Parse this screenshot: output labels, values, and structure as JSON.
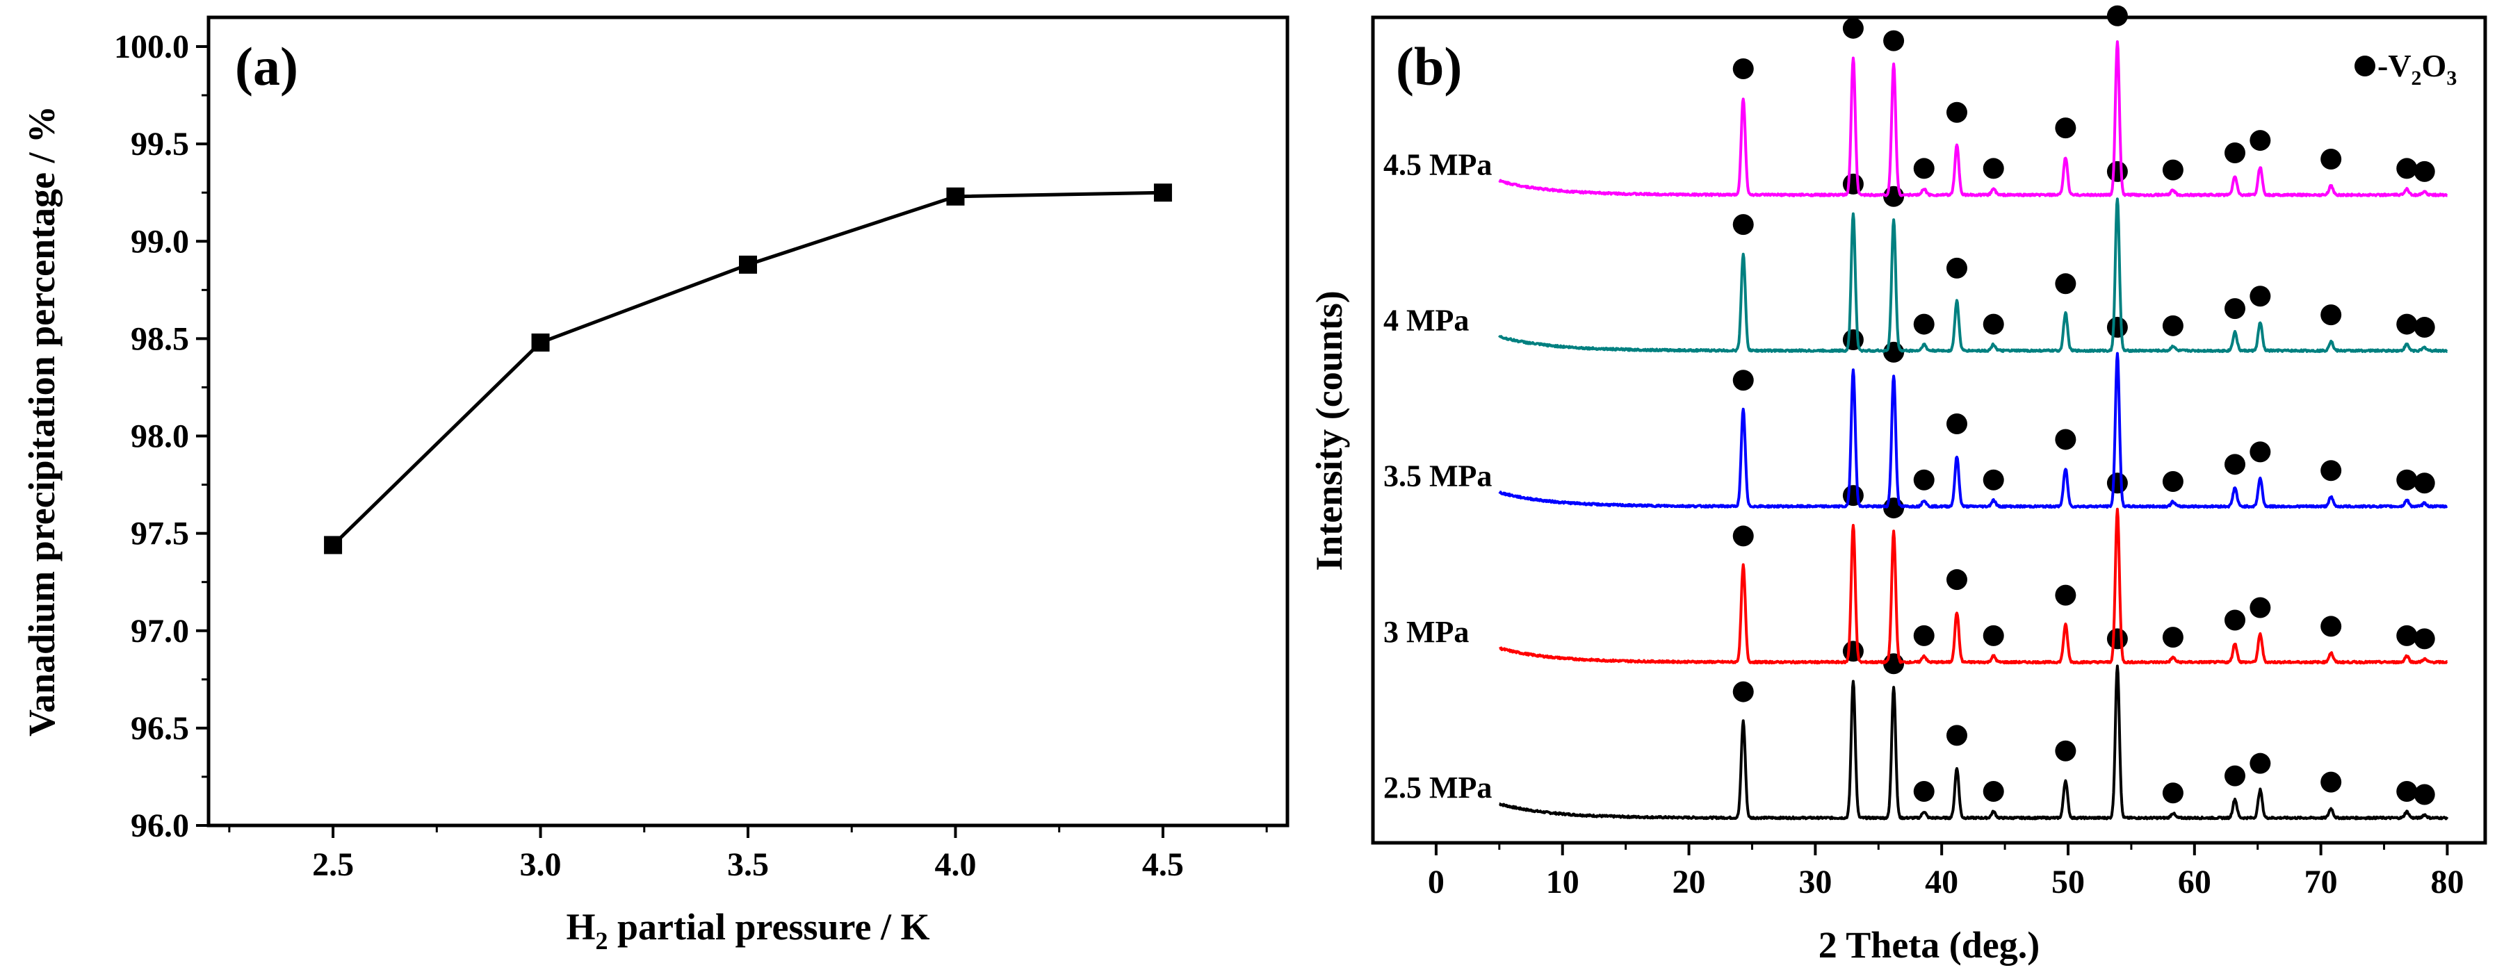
{
  "colors": {
    "axis": "#000000",
    "panel_a_line": "#000000",
    "series": [
      "#000000",
      "#ff0000",
      "#0000ff",
      "#008080",
      "#ff00ff"
    ]
  },
  "chart_data": [
    {
      "panel": "(a)",
      "type": "line",
      "marker": "square",
      "x": [
        2.5,
        3.0,
        3.5,
        4.0,
        4.5
      ],
      "y": [
        97.44,
        98.48,
        98.88,
        99.23,
        99.25
      ],
      "xlabel": {
        "main": "H",
        "sub": "2",
        "rest": " partial pressure / K"
      },
      "ylabel": "Vanadium precipitation percentage / %",
      "xlim": [
        2.2,
        4.8
      ],
      "ylim": [
        96.0,
        100.15
      ],
      "xticks": [
        "2.5",
        "3.0",
        "3.5",
        "4.0",
        "4.5"
      ],
      "yticks": [
        "96.0",
        "96.5",
        "97.0",
        "97.5",
        "98.0",
        "98.5",
        "99.0",
        "99.5",
        "100.0"
      ]
    },
    {
      "panel": "(b)",
      "type": "line",
      "xlabel": "2 Theta (deg.)",
      "ylabel": "Intensity (counts)",
      "xlim": [
        -5,
        83
      ],
      "ylim": [
        0,
        5.3
      ],
      "xticks": [
        "0",
        "10",
        "20",
        "30",
        "40",
        "50",
        "60",
        "70",
        "80"
      ],
      "legend": {
        "marker": "filled-circle",
        "prefix": "-V",
        "sub1": "2",
        "mid": "O",
        "sub2": "3",
        "position": "top-right"
      },
      "x_range": [
        5,
        80
      ],
      "peaks": [
        {
          "two_theta": 24.3,
          "height": 0.62
        },
        {
          "two_theta": 33.0,
          "height": 0.88
        },
        {
          "two_theta": 36.2,
          "height": 0.84
        },
        {
          "two_theta": 38.6,
          "height": 0.04
        },
        {
          "two_theta": 41.2,
          "height": 0.32
        },
        {
          "two_theta": 44.1,
          "height": 0.04
        },
        {
          "two_theta": 49.8,
          "height": 0.24
        },
        {
          "two_theta": 53.9,
          "height": 0.98
        },
        {
          "two_theta": 58.3,
          "height": 0.03
        },
        {
          "two_theta": 63.2,
          "height": 0.12
        },
        {
          "two_theta": 65.2,
          "height": 0.18
        },
        {
          "two_theta": 70.8,
          "height": 0.06
        },
        {
          "two_theta": 76.8,
          "height": 0.04
        },
        {
          "two_theta": 78.2,
          "height": 0.02
        }
      ],
      "series": [
        {
          "name": "2.5 MPa",
          "offset": 0.15,
          "color": "#000000"
        },
        {
          "name": "3 MPa",
          "offset": 1.15,
          "color": "#ff0000"
        },
        {
          "name": "3.5 MPa",
          "offset": 2.15,
          "color": "#0000ff"
        },
        {
          "name": "4 MPa",
          "offset": 3.15,
          "color": "#008080"
        },
        {
          "name": "4.5 MPa",
          "offset": 4.15,
          "color": "#ff00ff"
        }
      ],
      "markers": [
        {
          "two_theta": 24.3,
          "above": 0.2
        },
        {
          "two_theta": 33.0,
          "above": 0.2
        },
        {
          "two_theta": 36.2,
          "above": 0.16
        },
        {
          "two_theta": 38.6,
          "above": 0.14
        },
        {
          "two_theta": 41.2,
          "above": 0.22
        },
        {
          "two_theta": 44.1,
          "above": 0.14
        },
        {
          "two_theta": 49.8,
          "above": 0.2
        },
        {
          "two_theta": 53.9,
          "above": 0.18
        },
        {
          "two_theta": 58.3,
          "above": 0.14
        },
        {
          "two_theta": 63.2,
          "above": 0.16
        },
        {
          "two_theta": 65.2,
          "above": 0.18
        },
        {
          "two_theta": 70.8,
          "above": 0.18
        },
        {
          "two_theta": 76.8,
          "above": 0.14
        },
        {
          "two_theta": 78.2,
          "above": 0.14
        }
      ]
    }
  ]
}
